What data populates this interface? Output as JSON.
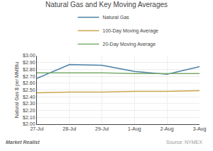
{
  "chart_data": {
    "type": "line",
    "title": "Natural Gas and Key Moving Averages",
    "y_label": "Natural Gas $ per MMBtu",
    "categories": [
      "27-Jul",
      "28-Jul",
      "29-Jul",
      "1-Aug",
      "2-Aug",
      "3-Aug"
    ],
    "series": [
      {
        "name": "Natural Gas",
        "color": "#4a7fa5",
        "values": [
          2.67,
          2.87,
          2.86,
          2.77,
          2.73,
          2.84
        ]
      },
      {
        "name": "100-Day Moving Average",
        "color": "#c8a84b",
        "values": [
          2.46,
          2.47,
          2.47,
          2.48,
          2.48,
          2.49
        ]
      },
      {
        "name": "20-Day Moving Average",
        "color": "#7aab6e",
        "values": [
          2.75,
          2.75,
          2.75,
          2.74,
          2.74,
          2.74
        ]
      }
    ],
    "ylim": [
      2.0,
      3.0
    ],
    "yticks": [
      {
        "value": 2.0,
        "label": "$2.00"
      },
      {
        "value": 2.1,
        "label": "$2.10"
      },
      {
        "value": 2.2,
        "label": "$2.20"
      },
      {
        "value": 2.3,
        "label": "$2.30"
      },
      {
        "value": 2.4,
        "label": "$2.40"
      },
      {
        "value": 2.5,
        "label": "$2.50"
      },
      {
        "value": 2.6,
        "label": "$2.60"
      },
      {
        "value": 2.7,
        "label": "$2.70"
      },
      {
        "value": 2.8,
        "label": "$2.80"
      },
      {
        "value": 2.9,
        "label": "$2.90"
      },
      {
        "value": 3.0,
        "label": "$3.00"
      }
    ],
    "grid": true,
    "legend": "top",
    "annotations": [
      {
        "text": "Market Realist"
      },
      {
        "text": "Source: NYMEX"
      }
    ]
  }
}
